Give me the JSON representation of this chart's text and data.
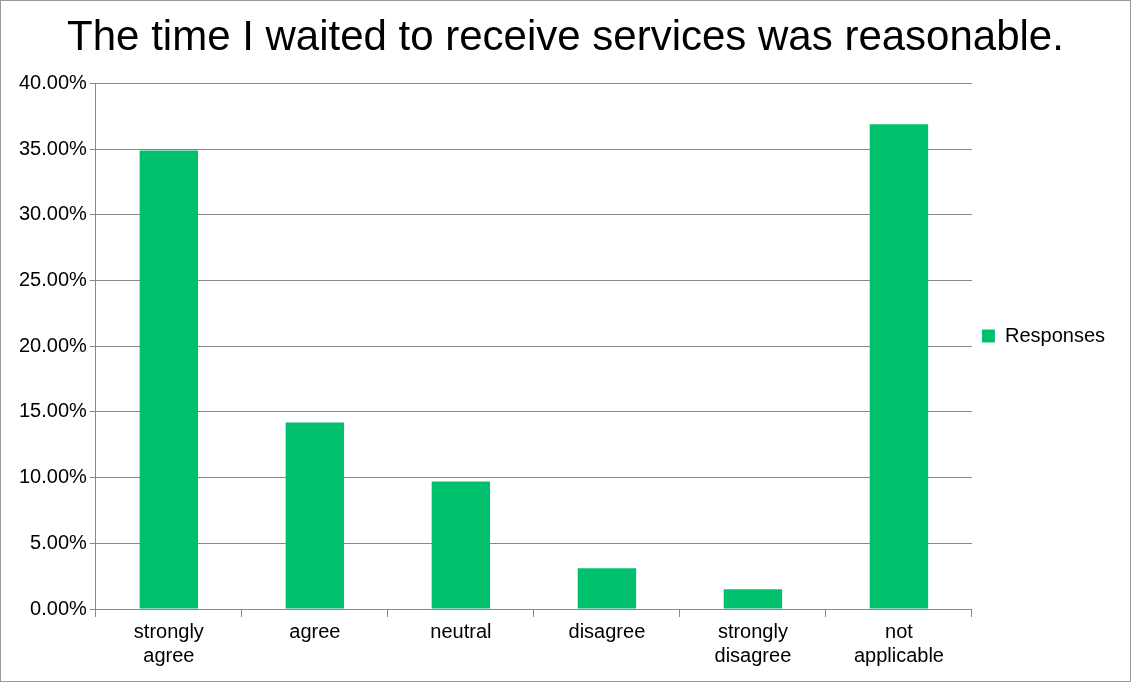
{
  "chart_data": {
    "type": "bar",
    "title": "The time I waited to receive services was reasonable.",
    "categories": [
      "strongly agree",
      "agree",
      "neutral",
      "disagree",
      "strongly disagree",
      "not applicable"
    ],
    "series": [
      {
        "name": "Responses",
        "color": "#00c06e",
        "values": [
          34.9,
          14.2,
          9.7,
          3.1,
          1.5,
          36.9
        ]
      }
    ],
    "ylim": [
      0,
      40
    ],
    "yticks": [
      {
        "value": 0,
        "label": "0.00%"
      },
      {
        "value": 5,
        "label": "5.00%"
      },
      {
        "value": 10,
        "label": "10.00%"
      },
      {
        "value": 15,
        "label": "15.00%"
      },
      {
        "value": 20,
        "label": "20.00%"
      },
      {
        "value": 25,
        "label": "25.00%"
      },
      {
        "value": 30,
        "label": "30.00%"
      },
      {
        "value": 35,
        "label": "35.00%"
      },
      {
        "value": 40,
        "label": "40.00%"
      }
    ],
    "grid": "y",
    "legend": "right"
  }
}
